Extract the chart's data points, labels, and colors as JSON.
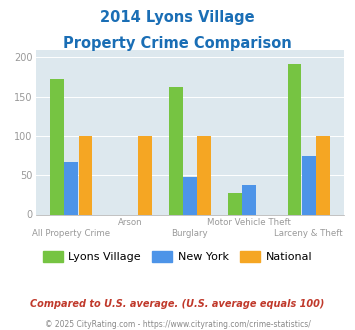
{
  "title_line1": "2014 Lyons Village",
  "title_line2": "Property Crime Comparison",
  "categories": [
    "All Property Crime",
    "Arson",
    "Burglary",
    "Motor Vehicle Theft",
    "Larceny & Theft"
  ],
  "lyons_village": [
    172,
    null,
    162,
    27,
    191
  ],
  "new_york": [
    67,
    null,
    48,
    38,
    75
  ],
  "national": [
    100,
    100,
    100,
    null,
    100
  ],
  "bar_color_lyons": "#76c442",
  "bar_color_newyork": "#4d94e8",
  "bar_color_national": "#f5a623",
  "background_plot": "#dde8ee",
  "ylim": [
    0,
    210
  ],
  "yticks": [
    0,
    50,
    100,
    150,
    200
  ],
  "footnote1": "Compared to U.S. average. (U.S. average equals 100)",
  "footnote2": "© 2025 CityRating.com - https://www.cityrating.com/crime-statistics/",
  "title_color": "#1a6eb5",
  "footnote1_color": "#c0392b",
  "footnote2_color": "#888888",
  "legend_labels": [
    "Lyons Village",
    "New York",
    "National"
  ],
  "tick_color": "#999999"
}
